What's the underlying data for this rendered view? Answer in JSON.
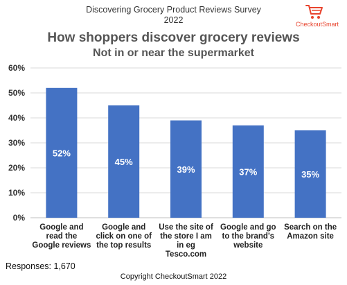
{
  "header": {
    "survey_title": "Discovering Grocery Product Reviews Survey",
    "survey_year": "2022",
    "logo_text": "CheckoutSmart",
    "logo_color": "#e8442e"
  },
  "footer": {
    "responses": "Responses: 1,670",
    "copyright": "Copyright CheckoutSmart 2022"
  },
  "chart_data": {
    "type": "bar",
    "title": "How shoppers discover grocery reviews",
    "subtitle": "Not in or near the supermarket",
    "categories": [
      [
        "Google and",
        "read the",
        "Google reviews"
      ],
      [
        "Google and",
        "click on one of",
        "the top results"
      ],
      [
        "Use the site of",
        "the store I am",
        "in eg",
        "Tesco.com"
      ],
      [
        "Google and go",
        "to the brand's",
        "website"
      ],
      [
        "Search on the",
        "Amazon site"
      ]
    ],
    "values": [
      52,
      45,
      39,
      37,
      35
    ],
    "data_labels": [
      "52%",
      "45%",
      "39%",
      "37%",
      "35%"
    ],
    "y_ticks": [
      "0%",
      "10%",
      "20%",
      "30%",
      "40%",
      "50%",
      "60%"
    ],
    "ylim": [
      0,
      60
    ],
    "grid": true,
    "bar_color": "#4472c4",
    "grid_color": "#d9d9d9"
  }
}
